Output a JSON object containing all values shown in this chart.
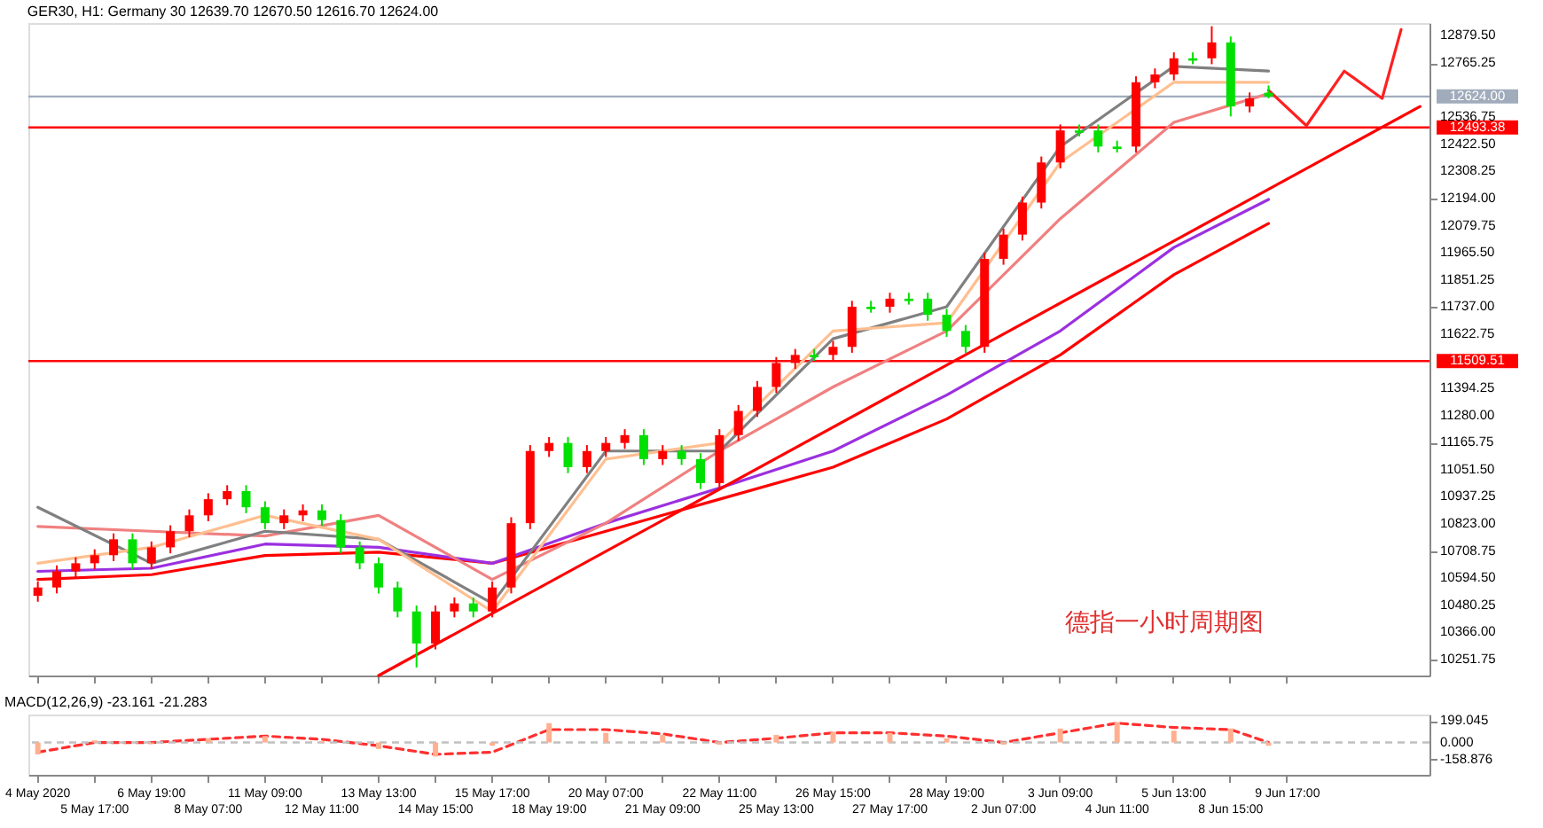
{
  "chart_data": [
    {
      "type": "candlestick",
      "title": "GER30, H1:  Germany 30  12639.70 12670.50 12616.70 12624.00",
      "ylim": [
        10184,
        12933.5
      ],
      "categories": [
        "4 May 2020",
        null,
        null,
        "5 May 17:00",
        null,
        null,
        "6 May 19:00",
        null,
        null,
        "8 May 07:00",
        null,
        null,
        "11 May 09:00",
        null,
        null,
        "12 May 11:00",
        null,
        null,
        "13 May 13:00",
        null,
        null,
        "14 May 15:00",
        null,
        null,
        "15 May 17:00",
        null,
        null,
        "18 May 19:00",
        null,
        null,
        "20 May 07:00",
        null,
        null,
        "21 May 09:00",
        null,
        null,
        "22 May 11:00",
        null,
        null,
        "25 May 13:00",
        null,
        null,
        "26 May 15:00",
        null,
        null,
        "27 May 17:00",
        null,
        null,
        "28 May 19:00",
        null,
        null,
        "2 Jun 07:00",
        null,
        null,
        "3 Jun 09:00",
        null,
        null,
        "4 Jun 11:00",
        null,
        null,
        "5 Jun 13:00",
        null,
        null,
        "8 Jun 15:00",
        null,
        null,
        "9 Jun 17:00",
        null,
        null,
        null,
        null,
        null,
        null,
        null
      ],
      "yticks": [
        {
          "value": 12879.5,
          "label": "12879.50"
        },
        {
          "value": 12765.25,
          "label": "12765.25"
        },
        {
          "value": 12536.75,
          "label": "12536.75"
        },
        {
          "value": 12422.5,
          "label": "12422.50"
        },
        {
          "value": 12308.25,
          "label": "12308.25"
        },
        {
          "value": 12194,
          "label": "12194.00"
        },
        {
          "value": 12079.75,
          "label": "12079.75"
        },
        {
          "value": 11965.5,
          "label": "11965.50"
        },
        {
          "value": 11851.25,
          "label": "11851.25"
        },
        {
          "value": 11737,
          "label": "11737.00"
        },
        {
          "value": 11622.75,
          "label": "11622.75"
        },
        {
          "value": 11394.25,
          "label": "11394.25"
        },
        {
          "value": 11280,
          "label": "11280.00"
        },
        {
          "value": 11165.75,
          "label": "11165.75"
        },
        {
          "value": 11051.5,
          "label": "11051.50"
        },
        {
          "value": 10937.25,
          "label": "10937.25"
        },
        {
          "value": 10823,
          "label": "10823.00"
        },
        {
          "value": 10708.75,
          "label": "10708.75"
        },
        {
          "value": 10594.5,
          "label": "10594.50"
        },
        {
          "value": 10480.25,
          "label": "10480.25"
        },
        {
          "value": 10366,
          "label": "10366.00"
        },
        {
          "value": 10251.75,
          "label": "10251.75"
        }
      ],
      "tick_labels": "y",
      "ref_lines": [
        {
          "axis": "y",
          "value": 12493.38,
          "label": "12493.38",
          "color": "#ff0000"
        },
        {
          "axis": "y",
          "value": 11509.51,
          "label": "11509.51",
          "color": "#ff0000"
        },
        {
          "axis": "y",
          "value": 12624.0,
          "label": "12624.00",
          "color": "#a0acbc"
        }
      ],
      "annotations": [
        "德指一小时周期图"
      ],
      "series": [
        {
          "type": "line",
          "color": "#ff0000",
          "values": [
            10589,
            null,
            null,
            null,
            null,
            null,
            10609,
            null,
            null,
            null,
            null,
            null,
            10690,
            null,
            null,
            null,
            null,
            null,
            10704,
            null,
            null,
            null,
            null,
            null,
            10657,
            null,
            null,
            null,
            null,
            null,
            10792,
            null,
            null,
            null,
            null,
            null,
            10927,
            null,
            null,
            null,
            null,
            null,
            11062,
            null,
            null,
            null,
            null,
            null,
            11265,
            null,
            null,
            null,
            null,
            null,
            11535,
            null,
            null,
            null,
            null,
            null,
            11873,
            null,
            null,
            null,
            null,
            12089,
            null,
            null,
            null,
            null,
            null,
            null,
            null,
            null
          ]
        },
        {
          "type": "line",
          "color": "#9b30e0",
          "values": [
            10623,
            null,
            null,
            null,
            null,
            null,
            10636,
            null,
            null,
            null,
            null,
            null,
            10738,
            null,
            null,
            null,
            null,
            null,
            10724,
            null,
            null,
            null,
            null,
            null,
            10657,
            null,
            null,
            null,
            null,
            null,
            10826,
            null,
            null,
            null,
            null,
            null,
            10974,
            null,
            null,
            null,
            null,
            null,
            11130,
            null,
            null,
            null,
            null,
            null,
            11366,
            null,
            null,
            null,
            null,
            null,
            11636,
            null,
            null,
            null,
            null,
            null,
            11988,
            null,
            null,
            null,
            null,
            12190,
            null,
            null,
            null,
            null,
            null,
            null,
            null,
            null
          ]
        },
        {
          "type": "line",
          "color": "#f08080",
          "values": [
            10812,
            null,
            null,
            null,
            null,
            null,
            10792,
            null,
            null,
            null,
            null,
            null,
            10772,
            null,
            null,
            null,
            null,
            null,
            10859,
            null,
            null,
            null,
            null,
            null,
            10589,
            null,
            null,
            null,
            null,
            null,
            10826,
            null,
            null,
            null,
            null,
            null,
            11130,
            null,
            null,
            null,
            null,
            null,
            11400,
            null,
            null,
            null,
            null,
            null,
            11636,
            null,
            null,
            null,
            null,
            null,
            12109,
            null,
            null,
            null,
            null,
            null,
            12515,
            null,
            null,
            null,
            null,
            12636,
            null,
            null,
            null,
            null,
            null,
            null,
            null,
            null
          ]
        },
        {
          "type": "line",
          "color": "#808080",
          "values": [
            10893,
            null,
            null,
            null,
            null,
            null,
            10657,
            null,
            null,
            null,
            null,
            null,
            10792,
            null,
            null,
            null,
            null,
            null,
            10758,
            null,
            null,
            null,
            null,
            null,
            10488,
            null,
            null,
            null,
            null,
            null,
            11130,
            null,
            null,
            null,
            null,
            null,
            11130,
            null,
            null,
            null,
            null,
            null,
            11603,
            null,
            null,
            null,
            null,
            null,
            11738,
            null,
            null,
            null,
            null,
            null,
            12413,
            null,
            null,
            null,
            null,
            null,
            12751,
            null,
            null,
            null,
            null,
            12731,
            null,
            null,
            null,
            null,
            null,
            null,
            null,
            null
          ]
        },
        {
          "type": "line",
          "color": "#ffbf90",
          "values": [
            10657,
            null,
            null,
            null,
            null,
            null,
            10724,
            null,
            null,
            null,
            null,
            null,
            10859,
            null,
            null,
            null,
            null,
            null,
            10758,
            null,
            null,
            null,
            null,
            null,
            10454,
            null,
            null,
            null,
            null,
            null,
            11096,
            null,
            null,
            null,
            null,
            null,
            11164,
            null,
            null,
            null,
            null,
            null,
            11636,
            null,
            null,
            null,
            null,
            null,
            11670,
            null,
            null,
            null,
            null,
            null,
            12346,
            null,
            null,
            null,
            null,
            null,
            12684,
            null,
            null,
            null,
            null,
            12684,
            null,
            null,
            null,
            null,
            null,
            null,
            null,
            null
          ]
        },
        {
          "type": "line",
          "color": "#ff0000",
          "values": [
            null,
            null,
            null,
            null,
            null,
            null,
            null,
            null,
            null,
            null,
            null,
            null,
            null,
            null,
            null,
            null,
            null,
            null,
            10184,
            null,
            null,
            null,
            null,
            null,
            null,
            null,
            null,
            null,
            null,
            null,
            null,
            null,
            null,
            null,
            null,
            null,
            null,
            null,
            null,
            null,
            null,
            null,
            null,
            null,
            null,
            null,
            null,
            null,
            null,
            null,
            null,
            null,
            null,
            null,
            null,
            null,
            null,
            null,
            null,
            null,
            null,
            null,
            null,
            null,
            null,
            null,
            null,
            null,
            null,
            null,
            null,
            null,
            null,
            12582
          ]
        },
        {
          "type": "line",
          "color": "#ff2020",
          "values": [
            null,
            null,
            null,
            null,
            null,
            null,
            null,
            null,
            null,
            null,
            null,
            null,
            null,
            null,
            null,
            null,
            null,
            null,
            null,
            null,
            null,
            null,
            null,
            null,
            null,
            null,
            null,
            null,
            null,
            null,
            null,
            null,
            null,
            null,
            null,
            null,
            null,
            null,
            null,
            null,
            null,
            null,
            null,
            null,
            null,
            null,
            null,
            null,
            null,
            null,
            null,
            null,
            null,
            null,
            null,
            null,
            null,
            null,
            null,
            null,
            null,
            null,
            null,
            null,
            null,
            12650,
            null,
            12501,
            null,
            12731,
            null,
            12616,
            12906,
            null
          ]
        },
        {
          "colors": [
            "#ff0000",
            "#ff0000",
            "#ff0000",
            "#ff0000",
            "#ff0000",
            "#00e000",
            "#ff0000",
            "#ff0000",
            "#ff0000",
            "#ff0000",
            "#ff0000",
            "#00e000",
            "#00e000",
            "#ff0000",
            "#ff0000",
            "#00e000",
            "#00e000",
            "#00e000",
            "#00e000",
            "#00e000",
            "#00e000",
            "#ff0000",
            "#ff0000",
            "#00e000",
            "#ff0000",
            "#ff0000",
            "#ff0000",
            "#ff0000",
            "#00e000",
            "#ff0000",
            "#ff0000",
            "#ff0000",
            "#00e000",
            "#ff0000",
            "#00e000",
            "#00e000",
            "#ff0000",
            "#ff0000",
            "#ff0000",
            "#ff0000",
            "#ff0000",
            "#00e000",
            "#ff0000",
            "#ff0000",
            "#00e000",
            "#ff0000",
            "#00e000",
            "#00e000",
            "#00e000",
            "#00e000",
            "#ff0000",
            "#ff0000",
            "#ff0000",
            "#ff0000",
            "#ff0000",
            "#00e000",
            "#00e000",
            "#00e000",
            "#ff0000",
            "#ff0000",
            "#ff0000",
            "#00e000",
            "#ff0000",
            "#00e000",
            "#ff0000",
            "#00e000",
            null,
            null,
            null,
            null,
            null,
            null,
            null,
            null
          ],
          "ohlc": [
            [
              10520,
              10580,
              10495,
              10555
            ],
            [
              10555,
              10648,
              10530,
              10623
            ],
            [
              10623,
              10682,
              10598,
              10657
            ],
            [
              10657,
              10716,
              10632,
              10691
            ],
            [
              10691,
              10783,
              10666,
              10758
            ],
            [
              10758,
              10783,
              10632,
              10657
            ],
            [
              10657,
              10749,
              10632,
              10724
            ],
            [
              10724,
              10817,
              10699,
              10792
            ],
            [
              10792,
              10884,
              10767,
              10859
            ],
            [
              10859,
              10952,
              10834,
              10927
            ],
            [
              10927,
              10986,
              10902,
              10961
            ],
            [
              10961,
              10986,
              10868,
              10893
            ],
            [
              10893,
              10918,
              10801,
              10826
            ],
            [
              10826,
              10884,
              10801,
              10859
            ],
            [
              10859,
              10905,
              10834,
              10880
            ],
            [
              10880,
              10905,
              10814,
              10839
            ],
            [
              10839,
              10864,
              10699,
              10724
            ],
            [
              10724,
              10749,
              10632,
              10657
            ],
            [
              10657,
              10682,
              10530,
              10555
            ],
            [
              10555,
              10580,
              10429,
              10454
            ],
            [
              10454,
              10479,
              10218,
              10319
            ],
            [
              10319,
              10479,
              10294,
              10454
            ],
            [
              10454,
              10513,
              10429,
              10488
            ],
            [
              10488,
              10513,
              10429,
              10454
            ],
            [
              10454,
              10580,
              10429,
              10555
            ],
            [
              10555,
              10851,
              10530,
              10826
            ],
            [
              10826,
              11155,
              10801,
              11130
            ],
            [
              11130,
              11189,
              11105,
              11164
            ],
            [
              11164,
              11189,
              11037,
              11062
            ],
            [
              11062,
              11155,
              11037,
              11130
            ],
            [
              11130,
              11189,
              11105,
              11164
            ],
            [
              11164,
              11222,
              11139,
              11197
            ],
            [
              11197,
              11222,
              11071,
              11096
            ],
            [
              11096,
              11155,
              11071,
              11130
            ],
            [
              11130,
              11155,
              11071,
              11096
            ],
            [
              11096,
              11121,
              10970,
              10995
            ],
            [
              10995,
              11222,
              10970,
              11197
            ],
            [
              11197,
              11324,
              11172,
              11299
            ],
            [
              11299,
              11425,
              11274,
              11400
            ],
            [
              11400,
              11526,
              11375,
              11501
            ],
            [
              11501,
              11560,
              11476,
              11535
            ],
            [
              11535,
              11560,
              11510,
              11525
            ],
            [
              11535,
              11594,
              11510,
              11569
            ],
            [
              11569,
              11763,
              11544,
              11738
            ],
            [
              11738,
              11763,
              11713,
              11728
            ],
            [
              11738,
              11797,
              11713,
              11772
            ],
            [
              11772,
              11797,
              11747,
              11762
            ],
            [
              11772,
              11797,
              11679,
              11704
            ],
            [
              11704,
              11729,
              11611,
              11636
            ],
            [
              11636,
              11661,
              11544,
              11569
            ],
            [
              11569,
              11965,
              11544,
              11940
            ],
            [
              11940,
              12067,
              11915,
              12042
            ],
            [
              12042,
              12202,
              12017,
              12177
            ],
            [
              12177,
              12371,
              12152,
              12346
            ],
            [
              12346,
              12506,
              12321,
              12481
            ],
            [
              12481,
              12506,
              12456,
              12471
            ],
            [
              12481,
              12506,
              12388,
              12413
            ],
            [
              12413,
              12438,
              12388,
              12403
            ],
            [
              12413,
              12709,
              12388,
              12684
            ],
            [
              12684,
              12742,
              12659,
              12717
            ],
            [
              12717,
              12810,
              12692,
              12785
            ],
            [
              12785,
              12810,
              12760,
              12775
            ],
            [
              12785,
              12920,
              12760,
              12852
            ],
            [
              12852,
              12877,
              12540,
              12582
            ],
            [
              12582,
              12641,
              12557,
              12616
            ],
            [
              12639.7,
              12670.5,
              12616.7,
              12624.0
            ],
            null,
            null,
            null,
            null,
            null,
            null,
            null,
            null
          ]
        }
      ]
    },
    {
      "type": "bar",
      "title": "MACD(12,26,9) -23.161 -21.283",
      "ylim": [
        -300,
        260
      ],
      "categories": [
        "4 May 2020",
        null,
        null,
        "5 May 17:00",
        null,
        null,
        "6 May 19:00",
        null,
        null,
        "8 May 07:00",
        null,
        null,
        "11 May 09:00",
        null,
        null,
        "12 May 11:00",
        null,
        null,
        "13 May 13:00",
        null,
        null,
        "14 May 15:00",
        null,
        null,
        "15 May 17:00",
        null,
        null,
        "18 May 19:00",
        null,
        null,
        "20 May 07:00",
        null,
        null,
        "21 May 09:00",
        null,
        null,
        "22 May 11:00",
        null,
        null,
        "25 May 13:00",
        null,
        null,
        "26 May 15:00",
        null,
        null,
        "27 May 17:00",
        null,
        null,
        "28 May 19:00",
        null,
        null,
        "2 Jun 07:00",
        null,
        null,
        "3 Jun 09:00",
        null,
        null,
        "4 Jun 11:00",
        null,
        null,
        "5 Jun 13:00",
        null,
        null,
        "8 Jun 15:00",
        null,
        null,
        "9 Jun 17:00",
        null,
        null,
        null,
        null,
        null,
        null,
        null
      ],
      "yticks": [
        {
          "value": 199.045,
          "label": "199.045"
        },
        {
          "value": 0,
          "label": "0.000"
        },
        {
          "value": -158.876,
          "label": "-158.876"
        }
      ],
      "ref_lines": [
        {
          "axis": "y",
          "value": 0,
          "color": "#c0c0c0",
          "line_style": "dashed"
        }
      ],
      "series": [
        {
          "color": "#ffb090",
          "values": [
            -110,
            null,
            null,
            20,
            null,
            null,
            -10,
            null,
            null,
            40,
            null,
            null,
            60,
            null,
            null,
            10,
            null,
            null,
            -60,
            null,
            null,
            -130,
            null,
            null,
            -30,
            null,
            null,
            180,
            null,
            null,
            90,
            null,
            null,
            70,
            null,
            null,
            -20,
            null,
            null,
            70,
            null,
            null,
            100,
            null,
            null,
            90,
            null,
            null,
            40,
            null,
            null,
            -20,
            null,
            null,
            130,
            null,
            null,
            190,
            null,
            null,
            110,
            null,
            null,
            130,
            null,
            -30,
            null,
            null,
            null,
            null,
            null,
            null,
            null,
            null
          ]
        },
        {
          "type": "line",
          "color": "#ff3030",
          "line_style": "dashed",
          "values": [
            -90,
            null,
            null,
            0,
            null,
            null,
            0,
            null,
            null,
            30,
            null,
            null,
            60,
            null,
            null,
            30,
            null,
            null,
            -30,
            null,
            null,
            -110,
            null,
            null,
            -90,
            null,
            null,
            120,
            null,
            null,
            120,
            null,
            null,
            80,
            null,
            null,
            0,
            null,
            null,
            40,
            null,
            null,
            90,
            null,
            null,
            90,
            null,
            null,
            60,
            null,
            null,
            0,
            null,
            null,
            90,
            null,
            null,
            180,
            null,
            null,
            140,
            null,
            null,
            120,
            null,
            0,
            null,
            null,
            null,
            null,
            null,
            null,
            null,
            null
          ]
        }
      ]
    }
  ]
}
